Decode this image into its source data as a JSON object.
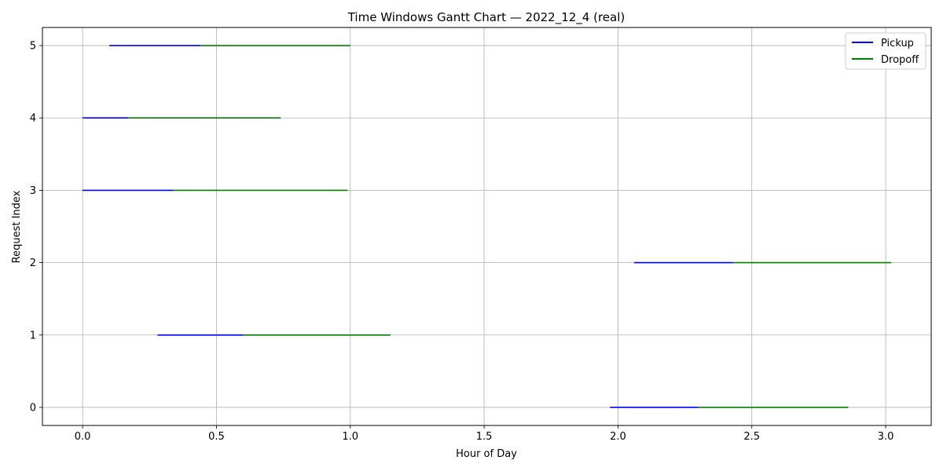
{
  "chart_data": {
    "type": "gantt",
    "title": "Time Windows Gantt Chart — 2022_12_4 (real)",
    "xlabel": "Hour of Day",
    "ylabel": "Request Index",
    "xlim": [
      -0.15,
      3.17
    ],
    "ylim": [
      -0.25,
      5.25
    ],
    "xticks": [
      0.0,
      0.5,
      1.0,
      1.5,
      2.0,
      2.5,
      3.0
    ],
    "xtick_labels": [
      "0.0",
      "0.5",
      "1.0",
      "1.5",
      "2.0",
      "2.5",
      "3.0"
    ],
    "yticks": [
      0,
      1,
      2,
      3,
      4,
      5
    ],
    "ytick_labels": [
      "0",
      "1",
      "2",
      "3",
      "4",
      "5"
    ],
    "grid": true,
    "legend_position": "top-right",
    "series": [
      {
        "name": "Pickup",
        "color": "#0000ff",
        "segments": [
          {
            "request": 0,
            "start": 1.97,
            "end": 2.3
          },
          {
            "request": 1,
            "start": 0.28,
            "end": 0.6
          },
          {
            "request": 2,
            "start": 2.06,
            "end": 2.43
          },
          {
            "request": 3,
            "start": 0.0,
            "end": 0.34
          },
          {
            "request": 4,
            "start": 0.0,
            "end": 0.17
          },
          {
            "request": 5,
            "start": 0.1,
            "end": 0.44
          }
        ]
      },
      {
        "name": "Dropoff",
        "color": "#008000",
        "segments": [
          {
            "request": 0,
            "start": 2.3,
            "end": 2.86
          },
          {
            "request": 1,
            "start": 0.6,
            "end": 1.15
          },
          {
            "request": 2,
            "start": 2.43,
            "end": 3.02
          },
          {
            "request": 3,
            "start": 0.34,
            "end": 0.99
          },
          {
            "request": 4,
            "start": 0.17,
            "end": 0.74
          },
          {
            "request": 5,
            "start": 0.44,
            "end": 1.0
          }
        ]
      }
    ]
  }
}
